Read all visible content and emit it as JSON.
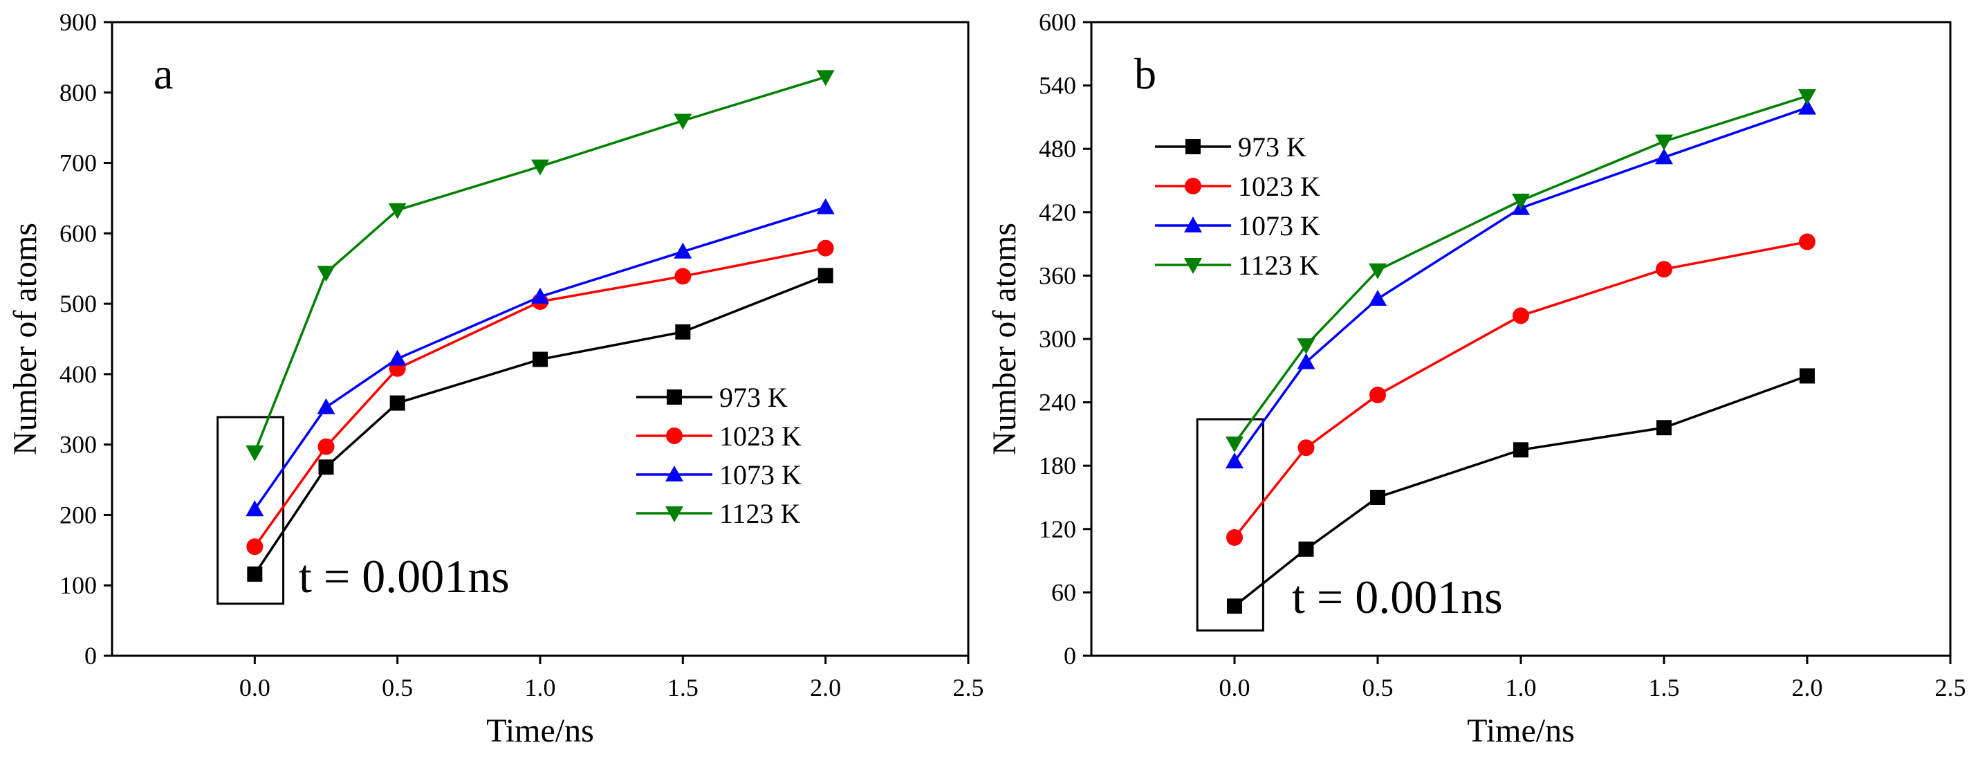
{
  "chart_data": [
    {
      "type": "line",
      "panel_label": "a",
      "xlabel": "Time/ns",
      "ylabel": "Number of atoms",
      "xlim": [
        -0.5,
        2.5
      ],
      "ylim": [
        0,
        900
      ],
      "xticks": [
        0.0,
        0.5,
        1.0,
        1.5,
        2.0,
        2.5
      ],
      "xtick_labels": [
        "0.0",
        "0.5",
        "1.0",
        "1.5",
        "2.0",
        "2.5"
      ],
      "yticks": [
        0,
        100,
        200,
        300,
        400,
        500,
        600,
        700,
        800,
        900
      ],
      "ytick_labels": [
        "0",
        "100",
        "200",
        "300",
        "400",
        "500",
        "600",
        "700",
        "800",
        "900"
      ],
      "x": [
        0.0,
        0.25,
        0.5,
        1.0,
        1.5,
        2.0
      ],
      "series": [
        {
          "name": "973 K",
          "color": "#000000",
          "marker": "square",
          "values": [
            116,
            268,
            359,
            421,
            460,
            540
          ]
        },
        {
          "name": "1023 K",
          "color": "#ff0000",
          "marker": "circle",
          "values": [
            155,
            297,
            408,
            503,
            539,
            579
          ]
        },
        {
          "name": "1073 K",
          "color": "#0000ff",
          "marker": "triangle-up",
          "values": [
            208,
            353,
            422,
            510,
            574,
            637
          ]
        },
        {
          "name": "1123 K",
          "color": "#008000",
          "marker": "triangle-down",
          "values": [
            289,
            544,
            633,
            695,
            760,
            822
          ]
        }
      ],
      "legend_position": "center-right",
      "annotation": {
        "text": "t = 0.001ns",
        "box_x_range": [
          -0.13,
          0.1
        ],
        "box_y_range": [
          74,
          339
        ]
      }
    },
    {
      "type": "line",
      "panel_label": "b",
      "xlabel": "Time/ns",
      "ylabel": "Number of atoms",
      "xlim": [
        -0.5,
        2.5
      ],
      "ylim": [
        0,
        600
      ],
      "xticks": [
        0.0,
        0.5,
        1.0,
        1.5,
        2.0,
        2.5
      ],
      "xtick_labels": [
        "0.0",
        "0.5",
        "1.0",
        "1.5",
        "2.0",
        "2.5"
      ],
      "yticks": [
        0,
        60,
        120,
        180,
        240,
        300,
        360,
        420,
        480,
        540,
        600
      ],
      "ytick_labels": [
        "0",
        "60",
        "120",
        "180",
        "240",
        "300",
        "360",
        "420",
        "480",
        "540",
        "600"
      ],
      "x": [
        0.0,
        0.25,
        0.5,
        1.0,
        1.5,
        2.0
      ],
      "series": [
        {
          "name": "973 K",
          "color": "#000000",
          "marker": "square",
          "values": [
            47,
            101,
            150,
            195,
            216,
            265
          ]
        },
        {
          "name": "1023 K",
          "color": "#ff0000",
          "marker": "circle",
          "values": [
            112,
            197,
            247,
            322,
            366,
            392
          ]
        },
        {
          "name": "1073 K",
          "color": "#0000ff",
          "marker": "triangle-up",
          "values": [
            184,
            278,
            338,
            424,
            472,
            519
          ]
        },
        {
          "name": "1123 K",
          "color": "#008000",
          "marker": "triangle-down",
          "values": [
            201,
            294,
            365,
            431,
            487,
            530
          ]
        }
      ],
      "legend_position": "top-left",
      "annotation": {
        "text": "t = 0.001ns",
        "box_x_range": [
          -0.13,
          0.1
        ],
        "box_y_range": [
          24,
          224
        ]
      }
    }
  ]
}
